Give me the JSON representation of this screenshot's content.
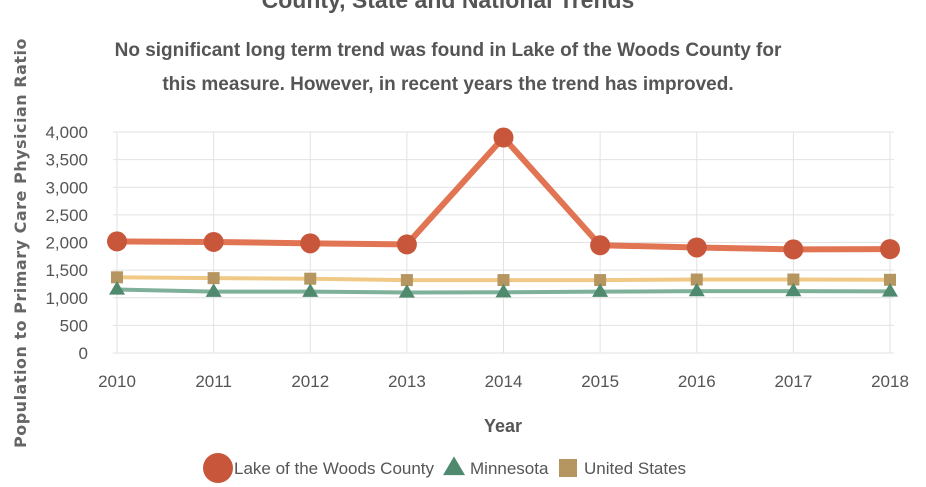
{
  "chart_data": {
    "type": "line",
    "title": "County, State and National Trends",
    "subtitle_lines": [
      "No significant long term trend was found in Lake of the Woods County for",
      "this measure. However, in recent years the trend has improved."
    ],
    "xlabel": "Year",
    "ylabel": "Population to Primary Care Physician Ratio",
    "ylim": [
      0,
      4000
    ],
    "y_ticks": [
      0,
      500,
      1000,
      1500,
      2000,
      2500,
      3000,
      3500,
      4000
    ],
    "y_tick_labels": [
      "0",
      "500",
      "1,000",
      "1,500",
      "2,000",
      "2,500",
      "3,000",
      "3,500",
      "4,000"
    ],
    "categories": [
      "2010",
      "2011",
      "2012",
      "2013",
      "2014",
      "2015",
      "2016",
      "2017",
      "2018"
    ],
    "grid": true,
    "legend_position": "bottom",
    "series": [
      {
        "name": "Lake of the Woods County",
        "marker": "circle",
        "color": "#e07453",
        "marker_color": "#c8563b",
        "values": [
          2020,
          2010,
          1985,
          1965,
          3900,
          1950,
          1910,
          1875,
          1880
        ]
      },
      {
        "name": "Minnesota",
        "marker": "triangle",
        "color": "#7fb09a",
        "marker_color": "#4f8a6f",
        "values": [
          1150,
          1110,
          1110,
          1095,
          1100,
          1110,
          1120,
          1120,
          1115
        ]
      },
      {
        "name": "United States",
        "marker": "square",
        "color": "#f0c987",
        "marker_color": "#b59660",
        "values": [
          1370,
          1355,
          1345,
          1320,
          1320,
          1320,
          1330,
          1330,
          1325
        ]
      }
    ]
  }
}
